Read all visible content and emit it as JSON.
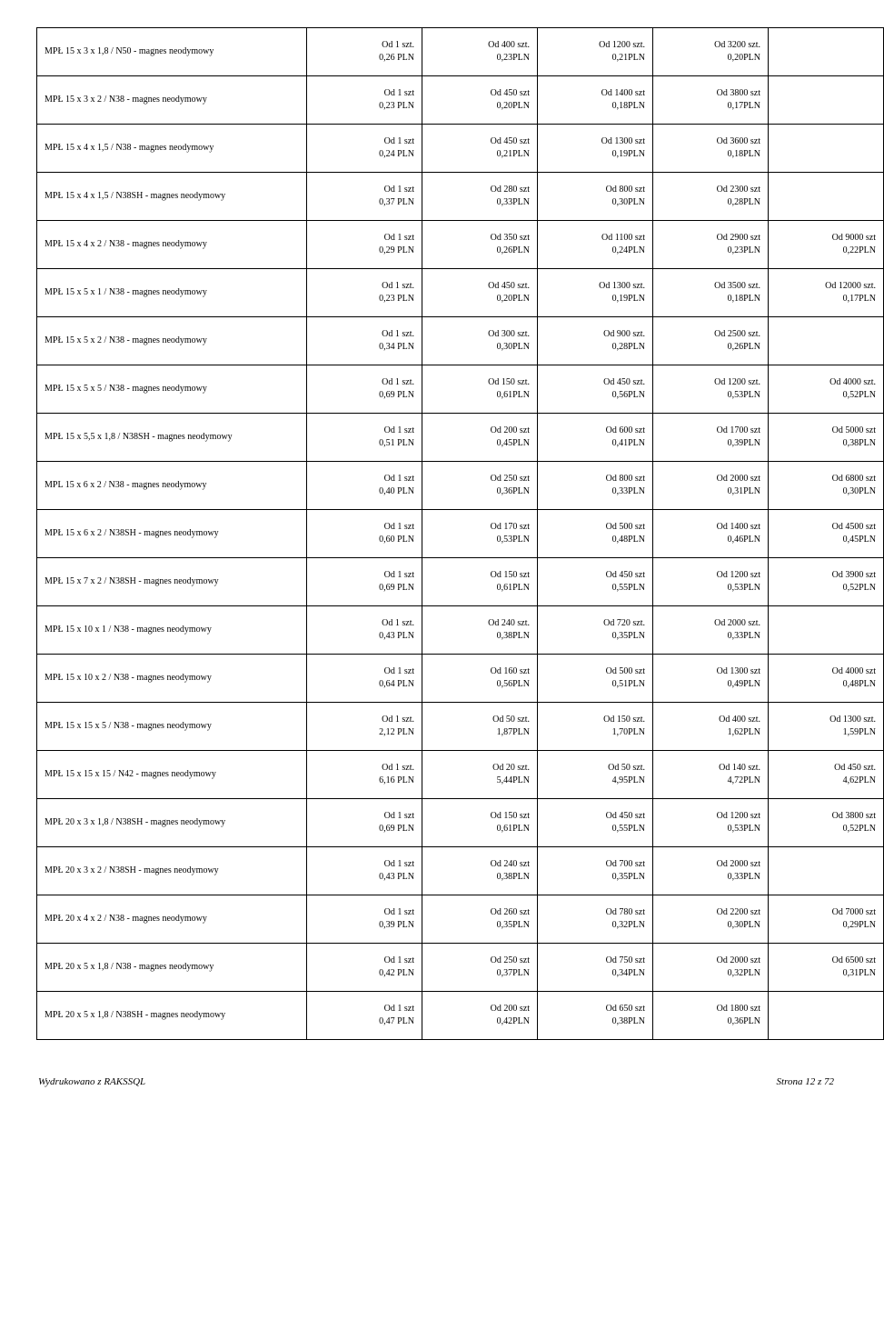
{
  "rows": [
    {
      "name": "MPŁ 15 x 3 x 1,8 / N50 - magnes neodymowy",
      "t1": "Od 1 szt.\n0,26 PLN",
      "t2": "Od 400 szt.\n0,23PLN",
      "t3": "Od 1200 szt.\n0,21PLN",
      "t4": "Od 3200 szt.\n0,20PLN",
      "t5": ""
    },
    {
      "name": "MPŁ 15 x 3 x 2 / N38 - magnes neodymowy",
      "t1": "Od 1 szt\n0,23 PLN",
      "t2": "Od 450 szt\n0,20PLN",
      "t3": "Od 1400 szt\n0,18PLN",
      "t4": "Od 3800 szt\n0,17PLN",
      "t5": ""
    },
    {
      "name": "MPŁ 15 x 4 x 1,5 / N38 - magnes neodymowy",
      "t1": "Od 1 szt\n0,24 PLN",
      "t2": "Od 450 szt\n0,21PLN",
      "t3": "Od 1300 szt\n0,19PLN",
      "t4": "Od 3600 szt\n0,18PLN",
      "t5": ""
    },
    {
      "name": "MPŁ 15 x 4 x 1,5 / N38SH - magnes neodymowy",
      "t1": "Od 1 szt\n0,37 PLN",
      "t2": "Od 280 szt\n0,33PLN",
      "t3": "Od 800 szt\n0,30PLN",
      "t4": "Od 2300 szt\n0,28PLN",
      "t5": ""
    },
    {
      "name": "MPŁ 15 x 4 x 2 / N38 - magnes neodymowy",
      "t1": "Od 1 szt\n0,29 PLN",
      "t2": "Od 350 szt\n0,26PLN",
      "t3": "Od 1100 szt\n0,24PLN",
      "t4": "Od 2900 szt\n0,23PLN",
      "t5": "Od 9000 szt\n0,22PLN"
    },
    {
      "name": "MPŁ 15 x 5 x 1 / N38 - magnes neodymowy",
      "t1": "Od 1 szt.\n0,23 PLN",
      "t2": "Od 450 szt.\n0,20PLN",
      "t3": "Od 1300 szt.\n0,19PLN",
      "t4": "Od 3500 szt.\n0,18PLN",
      "t5": "Od 12000 szt.\n0,17PLN"
    },
    {
      "name": "MPŁ 15 x 5 x 2 / N38 - magnes neodymowy",
      "t1": "Od 1 szt.\n0,34 PLN",
      "t2": "Od 300 szt.\n0,30PLN",
      "t3": "Od 900 szt.\n0,28PLN",
      "t4": "Od 2500 szt.\n0,26PLN",
      "t5": ""
    },
    {
      "name": "MPŁ 15 x 5 x 5 / N38 - magnes neodymowy",
      "t1": "Od 1 szt.\n0,69 PLN",
      "t2": "Od 150 szt.\n0,61PLN",
      "t3": "Od 450 szt.\n0,56PLN",
      "t4": "Od 1200 szt.\n0,53PLN",
      "t5": "Od 4000 szt.\n0,52PLN"
    },
    {
      "name": "MPŁ 15 x 5,5 x 1,8 / N38SH - magnes neodymowy",
      "t1": "Od 1 szt\n0,51 PLN",
      "t2": "Od 200 szt\n0,45PLN",
      "t3": "Od 600 szt\n0,41PLN",
      "t4": "Od 1700 szt\n0,39PLN",
      "t5": "Od 5000 szt\n0,38PLN"
    },
    {
      "name": "MPL 15 x 6 x 2 / N38 - magnes neodymowy",
      "t1": "Od 1 szt\n0,40 PLN",
      "t2": "Od 250 szt\n0,36PLN",
      "t3": "Od 800 szt\n0,33PLN",
      "t4": "Od 2000 szt\n0,31PLN",
      "t5": "Od 6800 szt\n0,30PLN"
    },
    {
      "name": "MPŁ 15 x 6 x 2 / N38SH - magnes neodymowy",
      "t1": "Od 1 szt\n0,60 PLN",
      "t2": "Od 170 szt\n0,53PLN",
      "t3": "Od 500 szt\n0,48PLN",
      "t4": "Od 1400 szt\n0,46PLN",
      "t5": "Od 4500 szt\n0,45PLN"
    },
    {
      "name": "MPŁ 15 x 7 x 2 / N38SH - magnes neodymowy",
      "t1": "Od 1 szt\n0,69 PLN",
      "t2": "Od 150 szt\n0,61PLN",
      "t3": "Od 450 szt\n0,55PLN",
      "t4": "Od 1200 szt\n0,53PLN",
      "t5": "Od 3900 szt\n0,52PLN"
    },
    {
      "name": "MPŁ 15 x 10 x 1 / N38 - magnes neodymowy",
      "t1": "Od 1 szt.\n0,43 PLN",
      "t2": "Od 240 szt.\n0,38PLN",
      "t3": "Od 720 szt.\n0,35PLN",
      "t4": "Od 2000 szt.\n0,33PLN",
      "t5": ""
    },
    {
      "name": "MPŁ 15 x 10 x 2 / N38 - magnes neodymowy",
      "t1": "Od 1 szt\n0,64 PLN",
      "t2": "Od 160 szt\n0,56PLN",
      "t3": "Od 500 szt\n0,51PLN",
      "t4": "Od 1300 szt\n0,49PLN",
      "t5": "Od 4000 szt\n0,48PLN"
    },
    {
      "name": "MPŁ 15 x 15 x 5 / N38 - magnes neodymowy",
      "t1": "Od 1 szt.\n2,12 PLN",
      "t2": "Od 50 szt.\n1,87PLN",
      "t3": "Od 150 szt.\n1,70PLN",
      "t4": "Od 400 szt.\n1,62PLN",
      "t5": "Od 1300 szt.\n1,59PLN"
    },
    {
      "name": "MPŁ 15 x 15 x 15 / N42 - magnes neodymowy",
      "t1": "Od 1 szt.\n6,16 PLN",
      "t2": "Od 20 szt.\n5,44PLN",
      "t3": "Od 50 szt.\n4,95PLN",
      "t4": "Od 140 szt.\n4,72PLN",
      "t5": "Od 450 szt.\n4,62PLN"
    },
    {
      "name": "MPŁ 20 x 3 x 1,8 / N38SH - magnes neodymowy",
      "t1": "Od 1 szt\n0,69 PLN",
      "t2": "Od 150 szt\n0,61PLN",
      "t3": "Od 450 szt\n0,55PLN",
      "t4": "Od 1200 szt\n0,53PLN",
      "t5": "Od 3800 szt\n0,52PLN"
    },
    {
      "name": "MPŁ 20 x 3 x 2 / N38SH - magnes neodymowy",
      "t1": "Od 1 szt\n0,43 PLN",
      "t2": "Od 240 szt\n0,38PLN",
      "t3": "Od 700 szt\n0,35PLN",
      "t4": "Od 2000 szt\n0,33PLN",
      "t5": ""
    },
    {
      "name": "MPŁ 20 x 4 x 2 / N38 - magnes neodymowy",
      "t1": "Od 1 szt\n0,39 PLN",
      "t2": "Od 260 szt\n0,35PLN",
      "t3": "Od 780 szt\n0,32PLN",
      "t4": "Od 2200 szt\n0,30PLN",
      "t5": "Od 7000 szt\n0,29PLN"
    },
    {
      "name": "MPŁ 20 x 5 x 1,8 / N38 - magnes neodymowy",
      "t1": "Od 1 szt\n0,42 PLN",
      "t2": "Od 250 szt\n0,37PLN",
      "t3": "Od 750 szt\n0,34PLN",
      "t4": "Od 2000 szt\n0,32PLN",
      "t5": "Od 6500 szt\n0,31PLN"
    },
    {
      "name": "MPŁ 20 x 5 x 1,8 / N38SH - magnes neodymowy",
      "t1": "Od 1 szt\n0,47 PLN",
      "t2": "Od 200 szt\n0,42PLN",
      "t3": "Od 650 szt\n0,38PLN",
      "t4": "Od 1800 szt\n0,36PLN",
      "t5": ""
    }
  ],
  "footer_left": "Wydrukowano z RAKSSQL",
  "footer_right": "Strona 12 z 72"
}
